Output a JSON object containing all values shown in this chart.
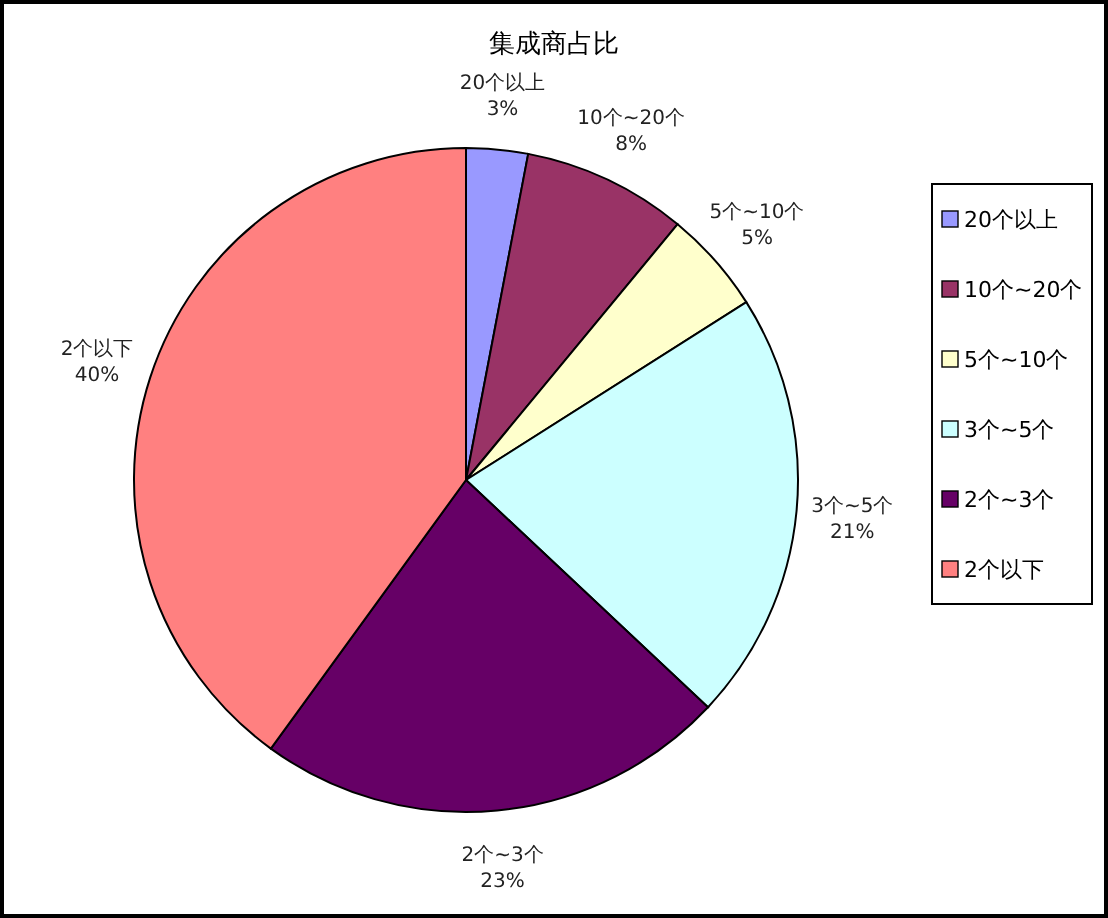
{
  "chart_data": {
    "type": "pie",
    "title": "集成商占比",
    "categories": [
      "20个以上",
      "10个~20个",
      "5个~10个",
      "3个~5个",
      "2个~3个",
      "2个以下"
    ],
    "values": [
      3,
      8,
      5,
      21,
      23,
      40
    ],
    "colors": [
      "#9999ff",
      "#993366",
      "#ffffcc",
      "#ccffff",
      "#660066",
      "#ff8080"
    ],
    "value_labels": [
      "3%",
      "8%",
      "5%",
      "21%",
      "23%",
      "40%"
    ],
    "legend": "right"
  }
}
